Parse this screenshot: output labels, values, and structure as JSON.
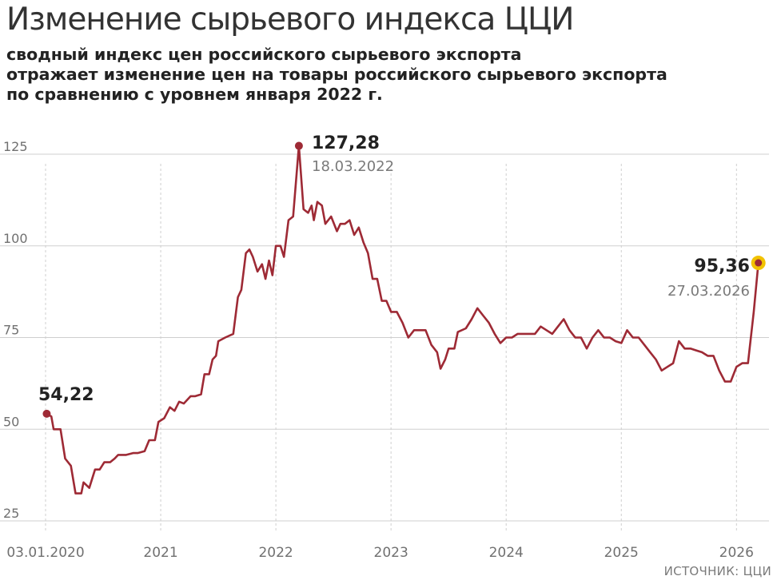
{
  "header": {
    "title": "Изменение сырьевого индекса ЦЦИ",
    "subtitle_lines": [
      "сводный индекс цен российского сырьевого экспорта",
      "отражает изменение цен на товары российского сырьевого экспорта",
      "по сравнению с уровнем января 2022 г."
    ]
  },
  "source": "ИСТОЧНИК: ЦЦИ",
  "colors": {
    "line": "#9e2a35",
    "last_point_halo": "#f2c200",
    "grid": "#cfcfcf",
    "axis_text": "#707070"
  },
  "chart_data": {
    "type": "line",
    "title": "Изменение сырьевого индекса ЦЦИ",
    "xlabel": "",
    "ylabel": "",
    "ylim": [
      25,
      130
    ],
    "y_ticks": [
      25,
      50,
      75,
      100,
      125
    ],
    "y_tick_labels": [
      "25",
      "50",
      "75",
      "100",
      "125"
    ],
    "xlim": [
      2020.0,
      2026.22
    ],
    "x_ticks": [
      2020.0,
      2021.0,
      2022.0,
      2023.0,
      2024.0,
      2025.0,
      2026.0
    ],
    "x_tick_labels": [
      "03.01.2020",
      "2021",
      "2022",
      "2023",
      "2024",
      "2025",
      "2026"
    ],
    "grid": "vertical",
    "series": [
      {
        "values": [
          [
            2020.01,
            54.22
          ],
          [
            2020.05,
            53.5
          ],
          [
            2020.07,
            50
          ],
          [
            2020.13,
            50
          ],
          [
            2020.17,
            42
          ],
          [
            2020.22,
            40
          ],
          [
            2020.26,
            32.5
          ],
          [
            2020.31,
            32.5
          ],
          [
            2020.33,
            35.5
          ],
          [
            2020.38,
            34
          ],
          [
            2020.43,
            39
          ],
          [
            2020.47,
            39
          ],
          [
            2020.51,
            41
          ],
          [
            2020.56,
            41
          ],
          [
            2020.6,
            42
          ],
          [
            2020.63,
            43
          ],
          [
            2020.7,
            43
          ],
          [
            2020.76,
            43.5
          ],
          [
            2020.8,
            43.5
          ],
          [
            2020.86,
            44
          ],
          [
            2020.9,
            47
          ],
          [
            2020.95,
            47
          ],
          [
            2020.98,
            52
          ],
          [
            2021.03,
            53
          ],
          [
            2021.08,
            56
          ],
          [
            2021.12,
            55
          ],
          [
            2021.16,
            57.5
          ],
          [
            2021.2,
            57
          ],
          [
            2021.26,
            59
          ],
          [
            2021.3,
            59
          ],
          [
            2021.35,
            59.5
          ],
          [
            2021.38,
            65
          ],
          [
            2021.42,
            65
          ],
          [
            2021.45,
            69
          ],
          [
            2021.48,
            70
          ],
          [
            2021.5,
            74
          ],
          [
            2021.56,
            75
          ],
          [
            2021.63,
            76
          ],
          [
            2021.67,
            86
          ],
          [
            2021.7,
            88
          ],
          [
            2021.74,
            98
          ],
          [
            2021.77,
            99
          ],
          [
            2021.8,
            97
          ],
          [
            2021.84,
            93
          ],
          [
            2021.88,
            95
          ],
          [
            2021.91,
            91
          ],
          [
            2021.94,
            96
          ],
          [
            2021.97,
            92
          ],
          [
            2022.0,
            100
          ],
          [
            2022.04,
            100
          ],
          [
            2022.07,
            97
          ],
          [
            2022.11,
            107
          ],
          [
            2022.15,
            108
          ],
          [
            2022.2,
            127.28
          ],
          [
            2022.24,
            110
          ],
          [
            2022.28,
            109
          ],
          [
            2022.31,
            111
          ],
          [
            2022.33,
            107
          ],
          [
            2022.36,
            112
          ],
          [
            2022.4,
            111
          ],
          [
            2022.43,
            106
          ],
          [
            2022.48,
            108
          ],
          [
            2022.53,
            104
          ],
          [
            2022.56,
            106
          ],
          [
            2022.6,
            106
          ],
          [
            2022.64,
            107
          ],
          [
            2022.68,
            103
          ],
          [
            2022.72,
            105
          ],
          [
            2022.76,
            101
          ],
          [
            2022.8,
            98
          ],
          [
            2022.84,
            91
          ],
          [
            2022.88,
            91
          ],
          [
            2022.92,
            85
          ],
          [
            2022.96,
            85
          ],
          [
            2023.0,
            82
          ],
          [
            2023.05,
            82
          ],
          [
            2023.1,
            79
          ],
          [
            2023.15,
            75
          ],
          [
            2023.2,
            77
          ],
          [
            2023.25,
            77
          ],
          [
            2023.3,
            77
          ],
          [
            2023.35,
            73
          ],
          [
            2023.4,
            71
          ],
          [
            2023.43,
            66.5
          ],
          [
            2023.47,
            69
          ],
          [
            2023.5,
            72
          ],
          [
            2023.55,
            72
          ],
          [
            2023.58,
            76.5
          ],
          [
            2023.65,
            77.5
          ],
          [
            2023.7,
            80
          ],
          [
            2023.75,
            83
          ],
          [
            2023.8,
            81
          ],
          [
            2023.85,
            79
          ],
          [
            2023.9,
            76
          ],
          [
            2023.95,
            73.5
          ],
          [
            2024.0,
            75
          ],
          [
            2024.05,
            75
          ],
          [
            2024.1,
            76
          ],
          [
            2024.2,
            76
          ],
          [
            2024.25,
            76
          ],
          [
            2024.3,
            78
          ],
          [
            2024.35,
            77
          ],
          [
            2024.4,
            76
          ],
          [
            2024.45,
            78
          ],
          [
            2024.5,
            80
          ],
          [
            2024.55,
            77
          ],
          [
            2024.6,
            75
          ],
          [
            2024.65,
            75
          ],
          [
            2024.7,
            72
          ],
          [
            2024.75,
            75
          ],
          [
            2024.8,
            77
          ],
          [
            2024.85,
            75
          ],
          [
            2024.9,
            75
          ],
          [
            2024.95,
            74
          ],
          [
            2025.0,
            73.5
          ],
          [
            2025.05,
            77
          ],
          [
            2025.1,
            75
          ],
          [
            2025.15,
            75
          ],
          [
            2025.2,
            73
          ],
          [
            2025.25,
            71
          ],
          [
            2025.3,
            69
          ],
          [
            2025.35,
            66
          ],
          [
            2025.4,
            67
          ],
          [
            2025.45,
            68
          ],
          [
            2025.5,
            74
          ],
          [
            2025.55,
            72
          ],
          [
            2025.6,
            72
          ],
          [
            2025.65,
            71.5
          ],
          [
            2025.7,
            71
          ],
          [
            2025.75,
            70
          ],
          [
            2025.8,
            70
          ],
          [
            2025.85,
            66
          ],
          [
            2025.9,
            63
          ],
          [
            2025.95,
            63
          ],
          [
            2026.0,
            67
          ],
          [
            2026.05,
            68
          ],
          [
            2026.1,
            68
          ],
          [
            2026.15,
            82
          ],
          [
            2026.19,
            95.36
          ]
        ]
      }
    ],
    "annotations": [
      {
        "label": "54,22",
        "date": "",
        "x": 2020.01,
        "y": 54.22
      },
      {
        "label": "127,28",
        "date": "18.03.2022",
        "x": 2022.2,
        "y": 127.28
      },
      {
        "label": "95,36",
        "date": "27.03.2026",
        "x": 2026.19,
        "y": 95.36
      }
    ]
  }
}
